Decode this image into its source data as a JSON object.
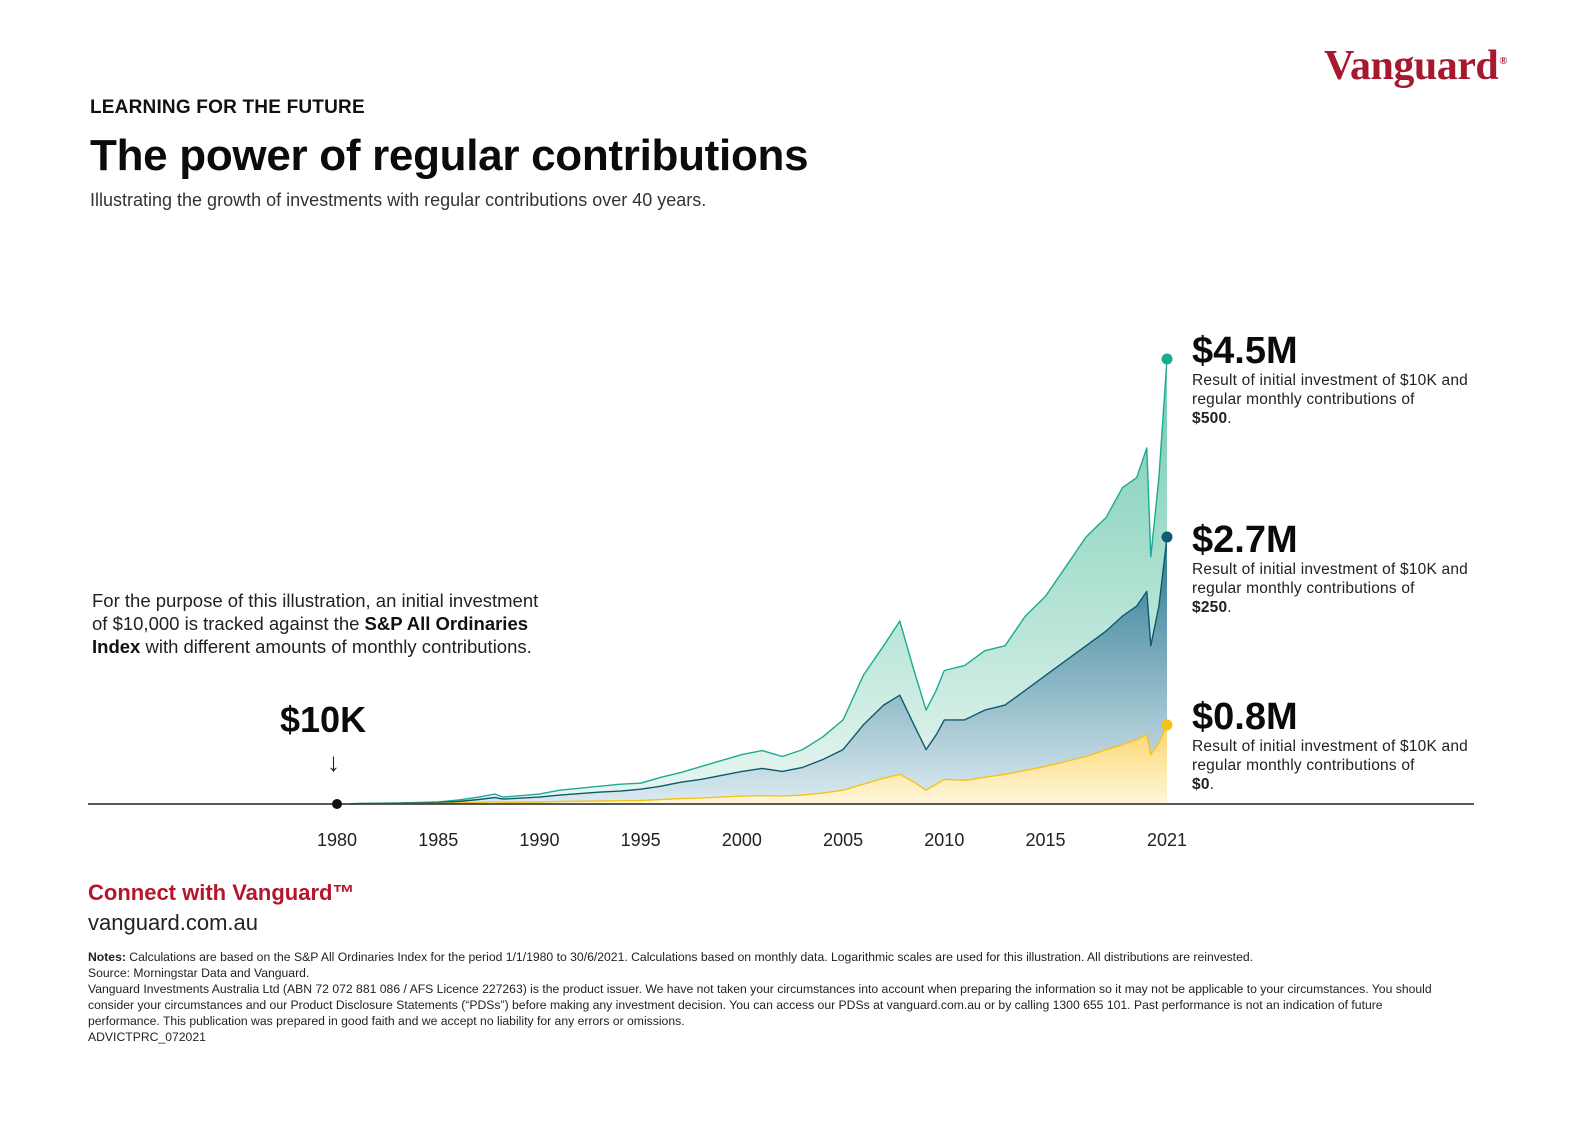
{
  "brand": {
    "logo_text": "Vanguard",
    "logo_mark": "®",
    "color": "#a6192e"
  },
  "header": {
    "kicker": "LEARNING FOR THE FUTURE",
    "title": "The power of regular contributions",
    "subtitle": "Illustrating the growth of investments with regular contributions over 40 years."
  },
  "intro": {
    "pre": "For the purpose of this illustration, an initial investment of $10,000 is tracked against the ",
    "bold": "S&P All Ordinaries Index",
    "post": " with different amounts of monthly contributions."
  },
  "start": {
    "label": "$10K",
    "arrow": "↓"
  },
  "annotations": [
    {
      "value": "$4.5M",
      "desc": "Result of initial investment of $10K and regular monthly contributions of",
      "amount": "$500",
      "end": ".",
      "color": "#1aab93"
    },
    {
      "value": "$2.7M",
      "desc": "Result of initial investment of $10K and regular monthly contributions of",
      "amount": "$250",
      "end": ".",
      "color": "#0e5a6e"
    },
    {
      "value": "$0.8M",
      "desc": "Result of initial investment of $10K and regular monthly contributions of",
      "amount": "$0",
      "end": ".",
      "color": "#f6c31c"
    }
  ],
  "chart_data": {
    "type": "area",
    "x_ticks": [
      1980,
      1985,
      1990,
      1995,
      2000,
      2005,
      2010,
      2015,
      2021
    ],
    "x_range": [
      1980,
      2021
    ],
    "y_range_millions": [
      0,
      4.5
    ],
    "grid": false,
    "legend": "none",
    "start_value": "$10K",
    "series": [
      {
        "name": "$500",
        "color": "#1aab93",
        "fill": "#7fd0b8",
        "x": [
          1981,
          1983,
          1985,
          1986,
          1987,
          1987.8,
          1988.2,
          1990,
          1991,
          1993,
          1994,
          1995,
          1996,
          1997,
          1998,
          2000,
          2001,
          2002,
          2003,
          2004,
          2005,
          2006,
          2007,
          2007.8,
          2008.5,
          2009.1,
          2009.6,
          2010,
          2011,
          2012,
          2013,
          2014,
          2015,
          2016,
          2017,
          2018,
          2018.8,
          2019.5,
          2020,
          2020.2,
          2020.6,
          2021
        ],
        "y": [
          0.005,
          0.01,
          0.02,
          0.04,
          0.07,
          0.1,
          0.07,
          0.1,
          0.14,
          0.18,
          0.2,
          0.21,
          0.27,
          0.32,
          0.38,
          0.5,
          0.54,
          0.48,
          0.55,
          0.68,
          0.85,
          1.3,
          1.6,
          1.85,
          1.35,
          0.95,
          1.15,
          1.35,
          1.4,
          1.55,
          1.6,
          1.9,
          2.1,
          2.4,
          2.7,
          2.9,
          3.2,
          3.3,
          3.6,
          2.5,
          3.3,
          4.5
        ]
      },
      {
        "name": "$250",
        "color": "#0e5a6e",
        "fill": "#2b7d94",
        "x": [
          1981,
          1983,
          1985,
          1986,
          1987,
          1987.8,
          1988.2,
          1990,
          1991,
          1993,
          1994,
          1995,
          1996,
          1997,
          1998,
          2000,
          2001,
          2002,
          2003,
          2004,
          2005,
          2006,
          2007,
          2007.8,
          2008.5,
          2009.1,
          2009.6,
          2010,
          2011,
          2012,
          2013,
          2014,
          2015,
          2016,
          2017,
          2018,
          2018.8,
          2019.5,
          2020,
          2020.2,
          2020.6,
          2021
        ],
        "y": [
          0.003,
          0.008,
          0.015,
          0.025,
          0.045,
          0.065,
          0.05,
          0.07,
          0.09,
          0.12,
          0.13,
          0.15,
          0.18,
          0.22,
          0.25,
          0.33,
          0.36,
          0.33,
          0.37,
          0.45,
          0.55,
          0.8,
          1.0,
          1.1,
          0.8,
          0.55,
          0.7,
          0.85,
          0.85,
          0.95,
          1.0,
          1.15,
          1.3,
          1.45,
          1.6,
          1.75,
          1.9,
          2.0,
          2.15,
          1.6,
          2.0,
          2.7
        ]
      },
      {
        "name": "$0",
        "color": "#f5c21b",
        "fill": "#fde7a0",
        "x": [
          1981,
          1983,
          1985,
          1986,
          1987,
          1987.8,
          1988.2,
          1990,
          1991,
          1993,
          1994,
          1995,
          1996,
          1997,
          1998,
          2000,
          2001,
          2002,
          2003,
          2004,
          2005,
          2006,
          2007,
          2007.8,
          2008.5,
          2009.1,
          2009.6,
          2010,
          2011,
          2012,
          2013,
          2014,
          2015,
          2016,
          2017,
          2018,
          2018.8,
          2019.5,
          2020,
          2020.2,
          2020.6,
          2021
        ],
        "y": [
          0.002,
          0.004,
          0.006,
          0.01,
          0.015,
          0.022,
          0.017,
          0.02,
          0.025,
          0.03,
          0.033,
          0.035,
          0.045,
          0.055,
          0.06,
          0.08,
          0.085,
          0.08,
          0.09,
          0.11,
          0.14,
          0.2,
          0.26,
          0.3,
          0.22,
          0.14,
          0.2,
          0.25,
          0.24,
          0.27,
          0.3,
          0.34,
          0.38,
          0.43,
          0.48,
          0.55,
          0.6,
          0.65,
          0.7,
          0.5,
          0.62,
          0.8
        ]
      }
    ]
  },
  "footer": {
    "connect": "Connect with Vanguard™",
    "site": "vanguard.com.au",
    "notes_label": "Notes:",
    "notes_text": " Calculations are based on the S&P All Ordinaries Index for the period 1/1/1980 to 30/6/2021. Calculations based on monthly data. Logarithmic scales are used for this illustration. All distributions are reinvested.",
    "source": "Source: Morningstar Data and Vanguard.",
    "disclaimer": "Vanguard Investments Australia Ltd (ABN 72 072 881 086 / AFS Licence 227263) is the product issuer. We have not taken your circumstances into account when preparing the information so it may not be applicable to your circumstances. You should consider your circumstances and our Product Disclosure Statements (“PDSs”) before making any investment decision. You can access our PDSs at vanguard.com.au or by calling 1300 655 101. Past performance is not an indication of future performance. This publication was prepared in good faith and we accept no liability for any errors or omissions.",
    "code": "ADVICTPRC_072021"
  }
}
